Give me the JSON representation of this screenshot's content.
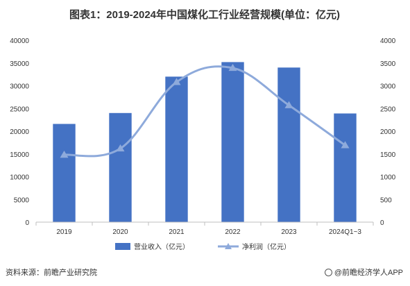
{
  "chart_data": {
    "type": "bar",
    "title": "图表1：2019-2024年中国煤化工行业经营规模(单位：亿元)",
    "categories": [
      "2019",
      "2020",
      "2021",
      "2022",
      "2023",
      "2024Q1~3"
    ],
    "series": [
      {
        "name": "营业收入（亿元）",
        "type": "bar",
        "axis": "left",
        "color": "#4472c4",
        "values": [
          21600,
          24000,
          32000,
          35200,
          34000,
          23900
        ]
      },
      {
        "name": "净利润（亿元）",
        "type": "line",
        "axis": "right",
        "smooth": true,
        "marker": "triangle",
        "color": "#8eaadb",
        "values": [
          1480,
          1620,
          3080,
          3390,
          2570,
          1690
        ]
      }
    ],
    "y_left": {
      "range": [
        0,
        40000
      ],
      "ticks": [
        0,
        5000,
        10000,
        15000,
        20000,
        25000,
        30000,
        35000,
        40000
      ]
    },
    "y_right": {
      "range": [
        0,
        4000
      ],
      "ticks": [
        0,
        500,
        1000,
        1500,
        2000,
        2500,
        3000,
        3500,
        4000
      ]
    },
    "grid": false,
    "legend_position": "bottom"
  },
  "footer": {
    "source": "资料来源：前瞻产业研究院",
    "brand": "@前瞻经济学人APP"
  }
}
